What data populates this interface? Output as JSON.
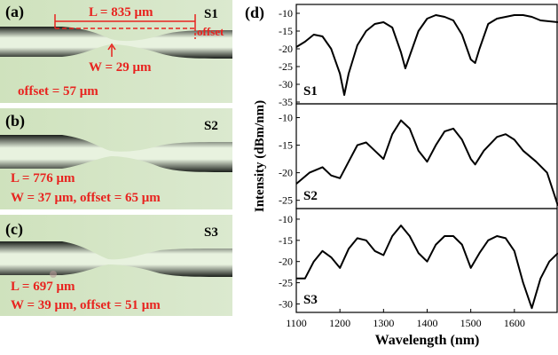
{
  "panels": [
    {
      "label": "(a)",
      "sample": "S1",
      "length": "L = 835 μm",
      "offset_tag": "offset",
      "waist": "W = 29 μm",
      "offset": "offset = 57 μm"
    },
    {
      "label": "(b)",
      "sample": "S2",
      "length": "L = 776 μm",
      "waist_offset": "W = 37 μm, offset = 65 μm"
    },
    {
      "label": "(c)",
      "sample": "S3",
      "length": "L = 697 μm",
      "waist_offset": "W = 39 μm, offset = 51 μm"
    }
  ],
  "chart_data": [
    {
      "type": "line",
      "panel_label": "(d)",
      "xlim": [
        1100,
        1700
      ],
      "ylim": [
        -35.5,
        -7.5
      ],
      "yticks": [
        -10,
        -15,
        -20,
        -25,
        -30,
        -35
      ],
      "x": [
        1100,
        1120,
        1140,
        1160,
        1180,
        1200,
        1210,
        1220,
        1240,
        1260,
        1280,
        1300,
        1320,
        1340,
        1350,
        1360,
        1380,
        1400,
        1420,
        1440,
        1460,
        1480,
        1500,
        1510,
        1520,
        1540,
        1560,
        1580,
        1600,
        1620,
        1640,
        1660,
        1700
      ],
      "series": [
        {
          "name": "S1",
          "color": "#000000",
          "values": [
            -19.5,
            -18,
            -16,
            -16.5,
            -20,
            -27,
            -33,
            -27,
            -19,
            -15,
            -13,
            -12.5,
            -14,
            -21,
            -25.5,
            -22,
            -15,
            -11.5,
            -10.5,
            -11,
            -12,
            -16,
            -23,
            -24,
            -20,
            -13,
            -11.5,
            -11,
            -10.5,
            -10.5,
            -11,
            -12,
            -12.5
          ]
        }
      ]
    },
    {
      "type": "line",
      "ylabel": "Intensity (dBm/nm)",
      "xlim": [
        1100,
        1700
      ],
      "ylim": [
        -26.5,
        -7.5
      ],
      "yticks": [
        -10,
        -15,
        -20,
        -25
      ],
      "x": [
        1100,
        1130,
        1160,
        1180,
        1200,
        1220,
        1240,
        1260,
        1280,
        1300,
        1320,
        1340,
        1360,
        1380,
        1400,
        1420,
        1440,
        1460,
        1480,
        1500,
        1510,
        1530,
        1560,
        1580,
        1600,
        1620,
        1650,
        1675,
        1700
      ],
      "series": [
        {
          "name": "S2",
          "color": "#000000",
          "values": [
            -22,
            -20,
            -19,
            -20.5,
            -21,
            -18,
            -15,
            -14.5,
            -16,
            -17.5,
            -13,
            -10.5,
            -12,
            -16,
            -18,
            -15,
            -12.5,
            -12,
            -14,
            -17.5,
            -18.5,
            -16,
            -13.5,
            -13,
            -14,
            -16,
            -18,
            -20,
            -26
          ]
        }
      ]
    },
    {
      "type": "line",
      "xlabel": "Wavelength (nm)",
      "xlim": [
        1100,
        1700
      ],
      "ylim": [
        -32,
        -7.5
      ],
      "yticks": [
        -10,
        -15,
        -20,
        -25,
        -30
      ],
      "xticks": [
        1100,
        1200,
        1300,
        1400,
        1500,
        1600
      ],
      "x": [
        1100,
        1120,
        1140,
        1160,
        1180,
        1200,
        1220,
        1240,
        1260,
        1280,
        1300,
        1320,
        1340,
        1360,
        1380,
        1400,
        1420,
        1440,
        1460,
        1480,
        1500,
        1520,
        1540,
        1560,
        1580,
        1600,
        1620,
        1640,
        1660,
        1680,
        1700
      ],
      "series": [
        {
          "name": "S3",
          "color": "#000000",
          "values": [
            -24,
            -24,
            -20,
            -17.5,
            -19,
            -21.5,
            -17,
            -14.5,
            -15,
            -17.5,
            -18.5,
            -14,
            -11.5,
            -14,
            -18,
            -20,
            -16,
            -14,
            -14,
            -16,
            -21.5,
            -18,
            -15,
            -14,
            -14.5,
            -17.5,
            -25,
            -31,
            -24,
            -20,
            -18
          ]
        }
      ]
    }
  ]
}
